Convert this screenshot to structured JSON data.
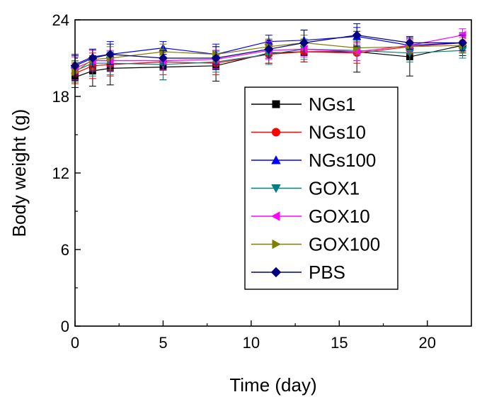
{
  "chart_data": {
    "type": "line",
    "xlabel": "Time (day)",
    "ylabel": "Body weight (g)",
    "xlim": [
      0,
      22.5
    ],
    "ylim": [
      0,
      24
    ],
    "xticks": [
      0,
      5,
      10,
      15,
      20
    ],
    "yticks": [
      0,
      6,
      12,
      18,
      24
    ],
    "grid": false,
    "legend": "center-right",
    "x": [
      0,
      1,
      2,
      5,
      8,
      11,
      13,
      16,
      19,
      22
    ],
    "series": [
      {
        "name": "NGs1",
        "color": "#000000",
        "marker": "square",
        "values": [
          19.5,
          20.0,
          20.2,
          20.3,
          20.4,
          21.4,
          21.5,
          21.5,
          21.1,
          22.0
        ],
        "err": [
          0.8,
          1.2,
          1.3,
          1.0,
          1.2,
          0.8,
          0.8,
          1.6,
          1.5,
          0.8
        ]
      },
      {
        "name": "NGs10",
        "color": "#ff0000",
        "marker": "circle",
        "values": [
          19.8,
          20.4,
          20.5,
          20.7,
          20.6,
          21.3,
          21.5,
          21.4,
          21.9,
          22.2
        ],
        "err": [
          0.8,
          1.0,
          0.9,
          1.0,
          0.9,
          0.7,
          0.8,
          0.8,
          0.6,
          0.7
        ]
      },
      {
        "name": "NGs100",
        "color": "#0000ff",
        "marker": "triangle-up",
        "values": [
          20.5,
          21.1,
          21.3,
          21.8,
          21.3,
          22.3,
          22.4,
          22.7,
          22.0,
          22.2
        ],
        "err": [
          0.8,
          0.6,
          1.0,
          0.5,
          0.8,
          0.5,
          0.8,
          0.7,
          0.5,
          0.8
        ]
      },
      {
        "name": "GOX1",
        "color": "#008080",
        "marker": "triangle-down",
        "values": [
          20.0,
          20.6,
          20.6,
          20.5,
          20.7,
          21.3,
          21.7,
          21.6,
          21.4,
          21.6
        ],
        "err": [
          0.8,
          1.0,
          0.9,
          1.2,
          0.8,
          0.8,
          0.8,
          0.8,
          0.7,
          0.6
        ]
      },
      {
        "name": "GOX10",
        "color": "#ff00ff",
        "marker": "triangle-left",
        "values": [
          20.2,
          20.8,
          20.8,
          20.8,
          20.9,
          21.6,
          21.7,
          21.5,
          22.0,
          22.8
        ],
        "err": [
          0.9,
          0.8,
          0.8,
          0.7,
          0.7,
          0.7,
          0.6,
          0.7,
          0.5,
          0.5
        ]
      },
      {
        "name": "GOX100",
        "color": "#808000",
        "marker": "triangle-right",
        "values": [
          19.9,
          20.9,
          21.0,
          21.5,
          21.3,
          21.9,
          22.2,
          21.8,
          21.9,
          22.0
        ],
        "err": [
          0.8,
          0.8,
          0.9,
          0.6,
          0.6,
          0.6,
          0.6,
          0.5,
          0.5,
          0.6
        ]
      },
      {
        "name": "PBS",
        "color": "#000080",
        "marker": "diamond",
        "values": [
          20.4,
          21.0,
          21.3,
          21.0,
          21.0,
          21.7,
          22.2,
          22.8,
          22.2,
          22.2
        ],
        "err": [
          0.8,
          0.7,
          0.8,
          0.6,
          0.9,
          0.7,
          1.0,
          0.9,
          0.5,
          0.6
        ]
      }
    ]
  }
}
